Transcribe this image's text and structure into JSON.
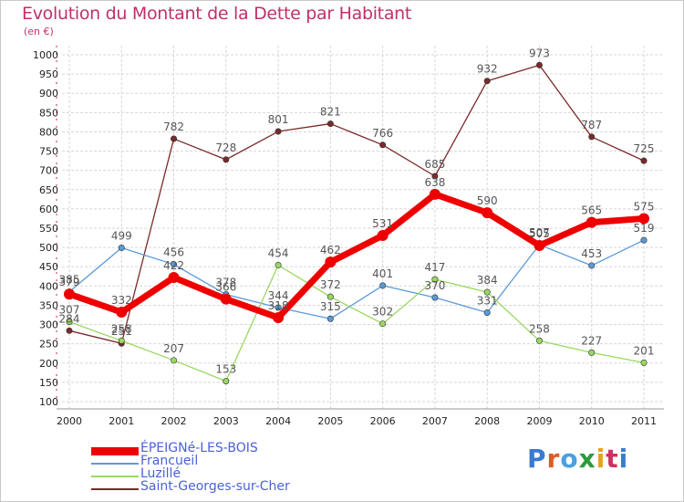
{
  "title": "Evolution du Montant de la Dette par Habitant",
  "unit": "(en €)",
  "logo": {
    "text": "Proxiti",
    "colors": [
      "#3a7ad0",
      "#e05a28",
      "#4aa0e0",
      "#2e9a3c",
      "#e8a020",
      "#d03060",
      "#3a7ad0"
    ]
  },
  "chart_data": {
    "type": "line",
    "title": "Evolution du Montant de la Dette par Habitant",
    "ylabel": "(en €)",
    "xlabel": "",
    "x": [
      "2000",
      "2001",
      "2002",
      "2003",
      "2004",
      "2005",
      "2006",
      "2007",
      "2008",
      "2009",
      "2010",
      "2011"
    ],
    "ylim": [
      100,
      1000
    ],
    "yticks": [
      100,
      150,
      200,
      250,
      300,
      350,
      400,
      450,
      500,
      550,
      600,
      650,
      700,
      750,
      800,
      850,
      900,
      950,
      1000
    ],
    "grid": true,
    "legend": "bottom-left",
    "series": [
      {
        "name": "ÉPEIGNé-LES-BOIS",
        "color": "#ee0000",
        "width": 7,
        "marker": 6,
        "values": [
          379,
          332,
          422,
          366,
          318,
          462,
          531,
          638,
          590,
          505,
          565,
          575
        ],
        "labels": [
          "379",
          "332",
          "422",
          "366",
          "318",
          "462",
          "531",
          "638",
          "590",
          "505",
          "565",
          "575"
        ]
      },
      {
        "name": "Francueil",
        "color": "#5a9ad8",
        "width": 1.3,
        "marker": 3.2,
        "values": [
          385,
          499,
          456,
          378,
          344,
          315,
          401,
          370,
          331,
          507,
          453,
          519
        ],
        "labels": [
          "385",
          "499",
          "456",
          "378",
          "344",
          "315",
          "401",
          "370",
          "331",
          "507",
          "453",
          "519"
        ]
      },
      {
        "name": "Luzillé",
        "color": "#9ad860",
        "width": 1.3,
        "marker": 3.2,
        "values": [
          307,
          258,
          207,
          153,
          454,
          372,
          302,
          417,
          384,
          258,
          227,
          201
        ],
        "labels": [
          "307",
          "258",
          "207",
          "153",
          "454",
          "372",
          "302",
          "417",
          "384",
          "258",
          "227",
          "201"
        ]
      },
      {
        "name": "Saint-Georges-sur-Cher",
        "color": "#7a2a2a",
        "width": 1.3,
        "marker": 3.2,
        "values": [
          284,
          251,
          782,
          728,
          801,
          821,
          766,
          685,
          932,
          973,
          787,
          725
        ],
        "labels": [
          "284",
          "251",
          "782",
          "728",
          "801",
          "821",
          "766",
          "685",
          "932",
          "973",
          "787",
          "725"
        ]
      }
    ]
  }
}
